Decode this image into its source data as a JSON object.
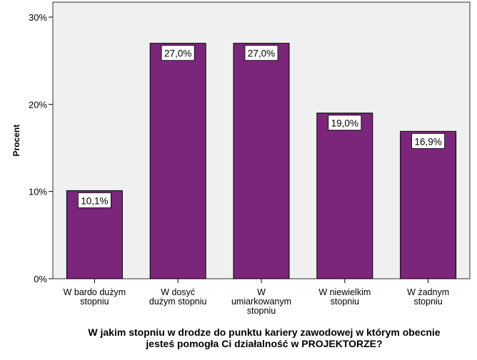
{
  "chart_data": {
    "type": "bar",
    "categories": [
      [
        "W bardo dużym",
        "stopniu"
      ],
      [
        "W dosyć",
        "dużym stopniu"
      ],
      [
        "W",
        "umiarkowanym",
        "stopniu"
      ],
      [
        "W niewielkim",
        "stopniu"
      ],
      [
        "W żadnym",
        "stopniu"
      ]
    ],
    "values": [
      10.1,
      27.0,
      27.0,
      19.0,
      16.9
    ],
    "value_labels": [
      "10,1%",
      "27,0%",
      "27,0%",
      "19,0%",
      "16,9%"
    ],
    "ylabel": "Procent",
    "xlabel_lines": [
      "W jakim stopniu w drodze do punktu kariery zawodowej w którym obecnie",
      "jesteś pomogła Ci działalność w PROJEKTORZE?"
    ],
    "ylim": [
      0,
      30
    ],
    "yticks": [
      0,
      10,
      20,
      30
    ],
    "ytick_labels": [
      "0%",
      "10%",
      "20%",
      "30%"
    ],
    "grid": false,
    "legend": "none",
    "colors": {
      "bar": "#7b267a",
      "plot_background": "#f0f0f0",
      "axis": "#000000"
    }
  }
}
